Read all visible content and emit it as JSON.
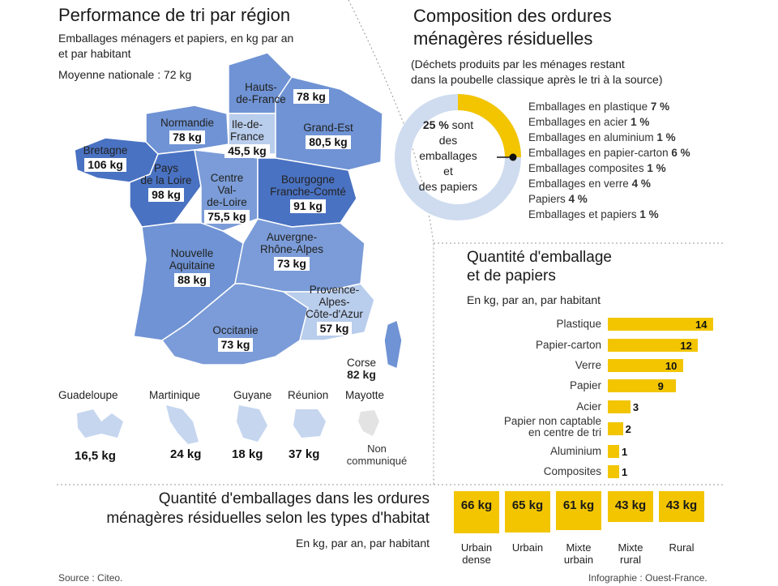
{
  "left": {
    "title": "Performance de tri par région",
    "subtitle_1": "Emballages ménagers et papiers, en kg par an",
    "subtitle_2": "et par habitant",
    "national_avg": "Moyenne nationale : 72 kg",
    "regions": [
      {
        "name": "Hauts-\nde-France",
        "value": "78 kg"
      },
      {
        "name": "Normandie",
        "value": "78 kg"
      },
      {
        "name": "Ile-de-\nFrance",
        "value": "45,5 kg"
      },
      {
        "name": "Grand-Est",
        "value": "80,5 kg"
      },
      {
        "name": "Bretagne",
        "value": "106 kg"
      },
      {
        "name": "Pays\nde la Loire",
        "value": "98 kg"
      },
      {
        "name": "Centre\nVal-\nde-Loire",
        "value": "75,5 kg"
      },
      {
        "name": "Bourgogne\nFranche-Comté",
        "value": "91 kg"
      },
      {
        "name": "Auvergne-\nRhône-Alpes",
        "value": "73 kg"
      },
      {
        "name": "Nouvelle\nAquitaine",
        "value": "88 kg"
      },
      {
        "name": "Provence-\nAlpes-\nCôte-d'Azur",
        "value": "57 kg"
      },
      {
        "name": "Occitanie",
        "value": "73 kg"
      },
      {
        "name": "Corse",
        "value": "82 kg"
      }
    ],
    "dom": [
      {
        "name": "Guadeloupe",
        "value": "16,5 kg"
      },
      {
        "name": "Martinique",
        "value": "24 kg"
      },
      {
        "name": "Guyane",
        "value": "18 kg"
      },
      {
        "name": "Réunion",
        "value": "37 kg"
      },
      {
        "name": "Mayotte",
        "value": "Non\ncommuniqué"
      }
    ]
  },
  "composition": {
    "title_1": "Composition des ordures",
    "title_2": "ménagères résiduelles",
    "note_1": "(Déchets produits par les ménages restant",
    "note_2": "dans la poubelle classique après le tri à la source)",
    "center_pct": "25 %",
    "center_text_1": " sont",
    "center_text_2": "des",
    "center_text_3": "emballages",
    "center_text_4": "et",
    "center_text_5": "des papiers",
    "items": [
      {
        "label": "Emballages en plastique",
        "pct": "7 %"
      },
      {
        "label": "Emballages en acier",
        "pct": "1 %"
      },
      {
        "label": "Emballages en aluminium",
        "pct": "1 %"
      },
      {
        "label": "Emballages en papier-carton",
        "pct": "6 %"
      },
      {
        "label": "Emballages composites",
        "pct": "1 %"
      },
      {
        "label": "Emballages en verre",
        "pct": "4 %"
      },
      {
        "label": "Papiers",
        "pct": "4 %"
      },
      {
        "label": "Emballages et papiers",
        "pct": "1 %"
      }
    ]
  },
  "quantity": {
    "title_1": "Quantité d'emballage",
    "title_2": "et de papiers",
    "unit": "En kg, par an, par habitant"
  },
  "habitat": {
    "title_1": "Quantité d'emballages dans les ordures",
    "title_2": "ménagères résiduelles selon les types d'habitat",
    "unit": "En kg, par an, par habitant"
  },
  "footer": {
    "source": "Source : Citeo.",
    "credit": "Infographie : Ouest-France."
  },
  "colors": {
    "accent": "#f2c500",
    "ring": "#cfdcef",
    "map_dark": "#4a72c2",
    "map_mid": "#7396d6",
    "map_light": "#b9cdec"
  },
  "chart_data": [
    {
      "type": "pie",
      "categories": [
        "Emballages et papiers",
        "Autres"
      ],
      "values": [
        25,
        75
      ],
      "title": "Composition des ordures ménagères résiduelles"
    },
    {
      "type": "bar",
      "orientation": "horizontal",
      "title": "Quantité d'emballage et de papiers",
      "ylabel": "En kg, par an, par habitant",
      "categories": [
        "Plastique",
        "Papier-carton",
        "Verre",
        "Papier",
        "Acier",
        "Papier non captable\nen centre de tri",
        "Aluminium",
        "Composites"
      ],
      "values": [
        14,
        12,
        10,
        9,
        3,
        2,
        1,
        1
      ]
    },
    {
      "type": "bar",
      "title": "Quantité d'emballages dans les ordures ménagères résiduelles selon les types d'habitat",
      "ylabel": "En kg, par an, par habitant",
      "categories": [
        "Urbain\ndense",
        "Urbain",
        "Mixte\nurbain",
        "Mixte\nrural",
        "Rural"
      ],
      "values": [
        66,
        65,
        61,
        43,
        43
      ],
      "value_labels": [
        "66 kg",
        "65 kg",
        "61 kg",
        "43 kg",
        "43 kg"
      ]
    }
  ]
}
